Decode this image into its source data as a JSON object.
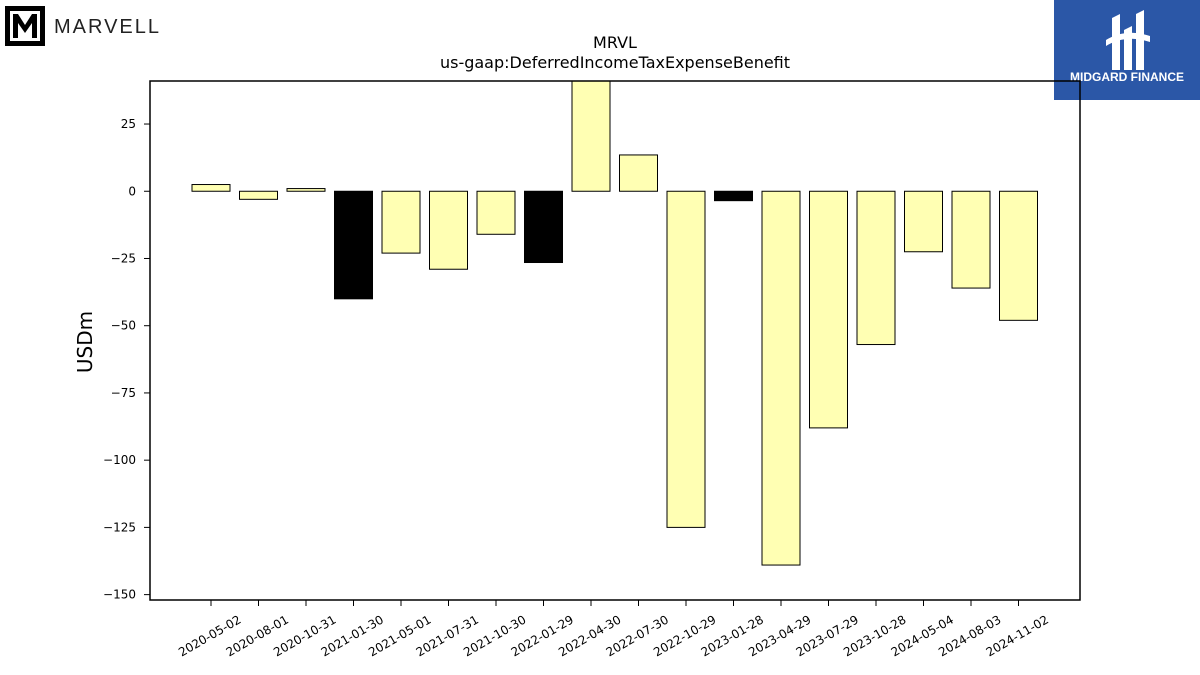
{
  "branding": {
    "company_logo_text": "MARVELL",
    "partner_logo_text": "MIDGARD FINANCE",
    "partner_bg_color": "#2b57a7"
  },
  "chart_data": {
    "type": "bar",
    "title": "MRVL",
    "subtitle": "us-gaap:DeferredIncomeTaxExpenseBenefit",
    "xlabel": "",
    "ylabel": "USDm",
    "ylim": [
      -152,
      41
    ],
    "yticks": [
      25,
      0,
      -25,
      -50,
      -75,
      -100,
      -125,
      -150
    ],
    "grid": false,
    "categories": [
      "2020-05-02",
      "2020-08-01",
      "2020-10-31",
      "2021-01-30",
      "2021-05-01",
      "2021-07-31",
      "2021-10-30",
      "2022-01-29",
      "2022-04-30",
      "2022-07-30",
      "2022-10-29",
      "2023-01-28",
      "2023-04-29",
      "2023-07-29",
      "2023-10-28",
      "2024-05-04",
      "2024-08-03",
      "2024-11-02"
    ],
    "values": [
      2.5,
      -3,
      1,
      -40,
      -23,
      -29,
      -16,
      -26.5,
      41,
      13.5,
      -125,
      -3.5,
      -139,
      -88,
      -57,
      -22.5,
      -36,
      -48
    ],
    "bar_colors": [
      "#ffffb3",
      "#ffffb3",
      "#ffffb3",
      "#000000",
      "#ffffb3",
      "#ffffb3",
      "#ffffb3",
      "#000000",
      "#ffffb3",
      "#ffffb3",
      "#ffffb3",
      "#000000",
      "#ffffb3",
      "#ffffb3",
      "#ffffb3",
      "#ffffb3",
      "#ffffb3",
      "#ffffb3"
    ]
  }
}
